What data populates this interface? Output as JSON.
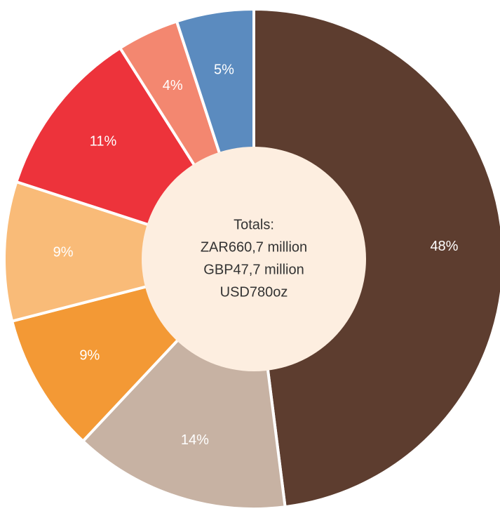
{
  "chart_data": {
    "type": "donut",
    "categories": [
      null,
      null,
      null,
      null,
      null,
      null,
      null
    ],
    "values": [
      48,
      14,
      9,
      9,
      11,
      4,
      5
    ],
    "value_labels": [
      "48%",
      "14%",
      "9%",
      "9%",
      "11%",
      "4%",
      "5%"
    ],
    "colors": [
      "#5d3d2f",
      "#c7b2a3",
      "#f39935",
      "#f9bb78",
      "#ed333b",
      "#f38770",
      "#5b8bbf"
    ],
    "center_color": "#fdeee0",
    "annotations": [
      "Totals:",
      "ZAR660,7 million",
      "GBP47,7 million",
      "USD780oz"
    ]
  }
}
